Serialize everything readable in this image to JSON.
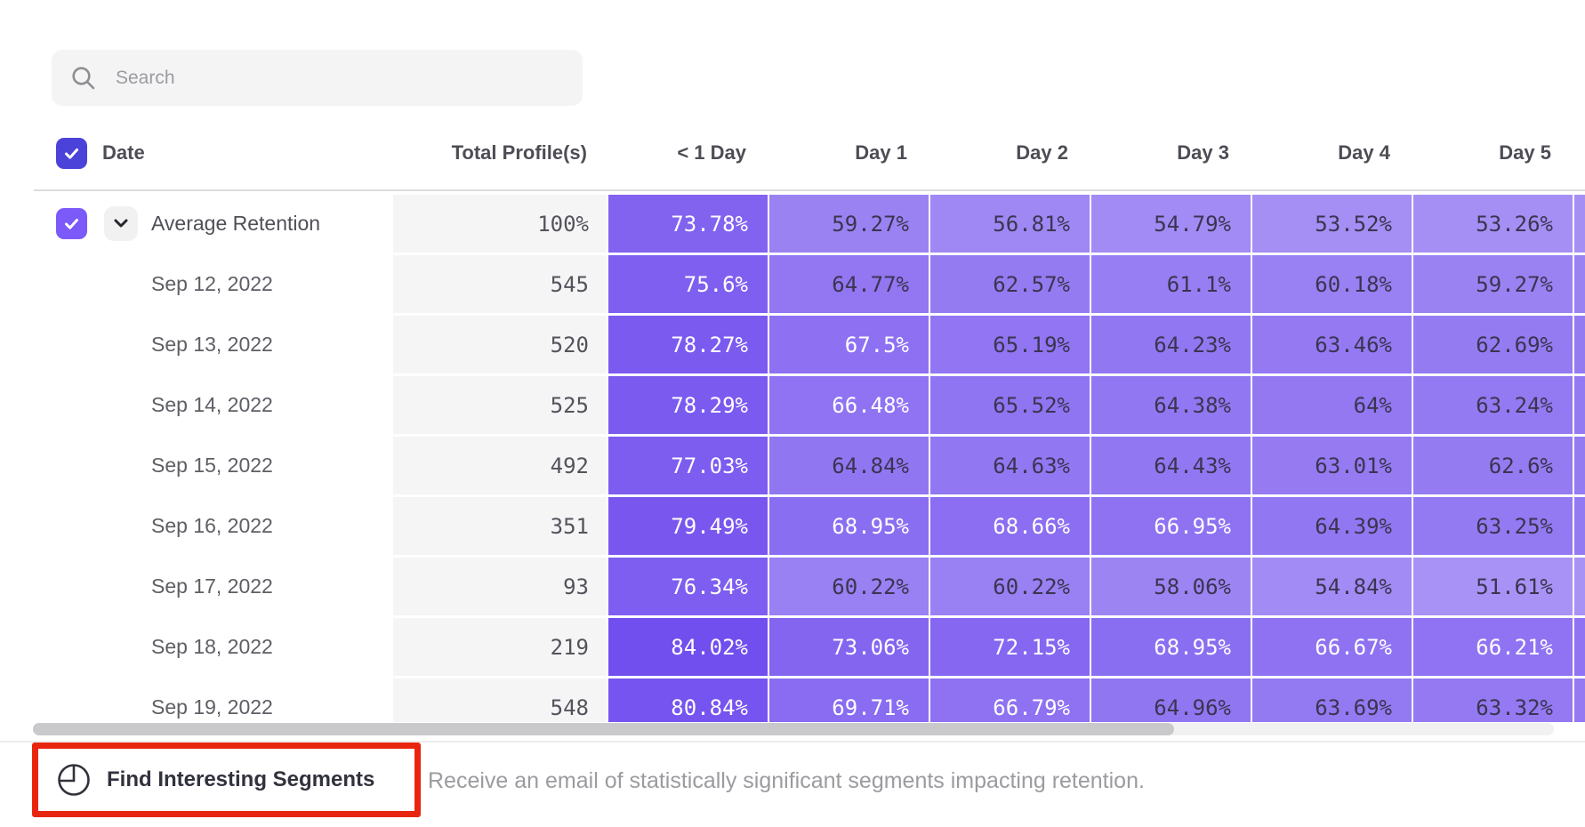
{
  "search": {
    "placeholder": "Search"
  },
  "table": {
    "columns": [
      "Date",
      "Total Profile(s)",
      "< 1 Day",
      "Day 1",
      "Day 2",
      "Day 3",
      "Day 4",
      "Day 5"
    ],
    "rows": [
      {
        "label": "Average Retention",
        "expandable": true,
        "checked": true,
        "total": "100%",
        "cells": [
          "73.78%",
          "59.27%",
          "56.81%",
          "54.79%",
          "53.52%",
          "53.26%"
        ]
      },
      {
        "label": "Sep 12, 2022",
        "total": "545",
        "cells": [
          "75.6%",
          "64.77%",
          "62.57%",
          "61.1%",
          "60.18%",
          "59.27%"
        ]
      },
      {
        "label": "Sep 13, 2022",
        "total": "520",
        "cells": [
          "78.27%",
          "67.5%",
          "65.19%",
          "64.23%",
          "63.46%",
          "62.69%"
        ]
      },
      {
        "label": "Sep 14, 2022",
        "total": "525",
        "cells": [
          "78.29%",
          "66.48%",
          "65.52%",
          "64.38%",
          "64%",
          "63.24%"
        ]
      },
      {
        "label": "Sep 15, 2022",
        "total": "492",
        "cells": [
          "77.03%",
          "64.84%",
          "64.63%",
          "64.43%",
          "63.01%",
          "62.6%"
        ]
      },
      {
        "label": "Sep 16, 2022",
        "total": "351",
        "cells": [
          "79.49%",
          "68.95%",
          "68.66%",
          "66.95%",
          "64.39%",
          "63.25%"
        ]
      },
      {
        "label": "Sep 17, 2022",
        "total": "93",
        "cells": [
          "76.34%",
          "60.22%",
          "60.22%",
          "58.06%",
          "54.84%",
          "51.61%"
        ]
      },
      {
        "label": "Sep 18, 2022",
        "total": "219",
        "cells": [
          "84.02%",
          "73.06%",
          "72.15%",
          "68.95%",
          "66.67%",
          "66.21%"
        ]
      },
      {
        "label": "Sep 19, 2022",
        "total": "548",
        "cells": [
          "80.84%",
          "69.71%",
          "66.79%",
          "64.96%",
          "63.69%",
          "63.32%"
        ]
      }
    ]
  },
  "footer": {
    "button_label": "Find Interesting Segments",
    "description": "Receive an email of statistically significant segments impacting retention."
  },
  "colors": {
    "heat_deep": "#562CEB",
    "cell_dark_text": "#3a3550",
    "cell_light_text": "#ffffff",
    "checkbox_header": "#4b42da",
    "checkbox_row": "#7c59f9",
    "highlight_red": "#e8260f"
  }
}
